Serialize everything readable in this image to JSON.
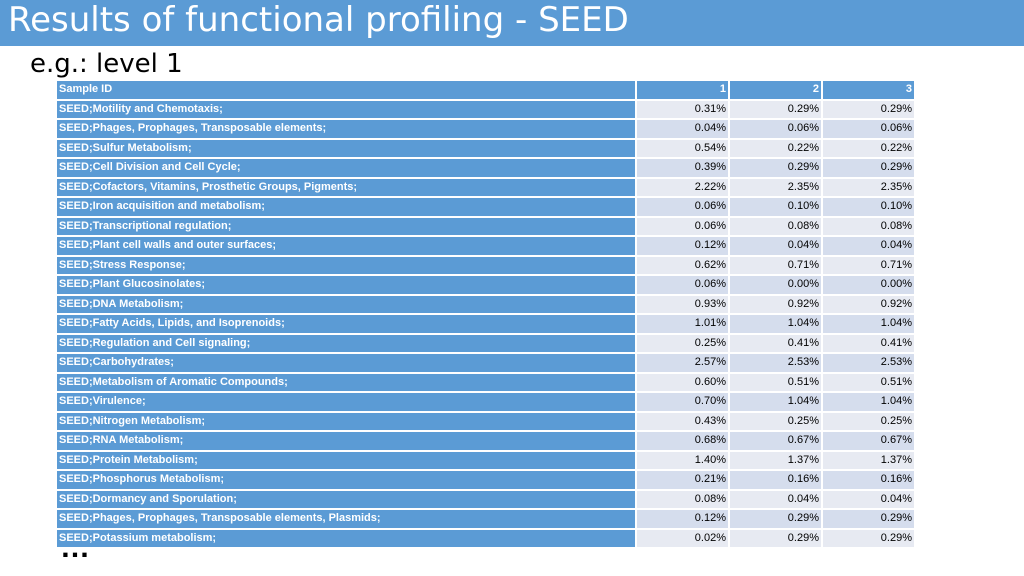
{
  "slide": {
    "title": "Results of functional profiling - SEED",
    "subtitle": "e.g.: level 1",
    "ellipsis": "…"
  },
  "table": {
    "header": {
      "label": "Sample ID",
      "cols": [
        "1",
        "2",
        "3"
      ]
    },
    "rows": [
      {
        "label": "SEED;Motility and Chemotaxis;",
        "values": [
          "0.31%",
          "0.29%",
          "0.29%"
        ]
      },
      {
        "label": "SEED;Phages, Prophages, Transposable elements;",
        "values": [
          "0.04%",
          "0.06%",
          "0.06%"
        ]
      },
      {
        "label": "SEED;Sulfur Metabolism;",
        "values": [
          "0.54%",
          "0.22%",
          "0.22%"
        ]
      },
      {
        "label": "SEED;Cell Division and Cell Cycle;",
        "values": [
          "0.39%",
          "0.29%",
          "0.29%"
        ]
      },
      {
        "label": "SEED;Cofactors, Vitamins, Prosthetic Groups, Pigments;",
        "values": [
          "2.22%",
          "2.35%",
          "2.35%"
        ]
      },
      {
        "label": "SEED;Iron acquisition and metabolism;",
        "values": [
          "0.06%",
          "0.10%",
          "0.10%"
        ]
      },
      {
        "label": "SEED;Transcriptional regulation;",
        "values": [
          "0.06%",
          "0.08%",
          "0.08%"
        ]
      },
      {
        "label": "SEED;Plant cell walls and outer surfaces;",
        "values": [
          "0.12%",
          "0.04%",
          "0.04%"
        ]
      },
      {
        "label": "SEED;Stress Response;",
        "values": [
          "0.62%",
          "0.71%",
          "0.71%"
        ]
      },
      {
        "label": "SEED;Plant Glucosinolates;",
        "values": [
          "0.06%",
          "0.00%",
          "0.00%"
        ]
      },
      {
        "label": "SEED;DNA Metabolism;",
        "values": [
          "0.93%",
          "0.92%",
          "0.92%"
        ]
      },
      {
        "label": "SEED;Fatty Acids, Lipids, and Isoprenoids;",
        "values": [
          "1.01%",
          "1.04%",
          "1.04%"
        ]
      },
      {
        "label": "SEED;Regulation and Cell signaling;",
        "values": [
          "0.25%",
          "0.41%",
          "0.41%"
        ]
      },
      {
        "label": "SEED;Carbohydrates;",
        "values": [
          "2.57%",
          "2.53%",
          "2.53%"
        ]
      },
      {
        "label": "SEED;Metabolism of Aromatic Compounds;",
        "values": [
          "0.60%",
          "0.51%",
          "0.51%"
        ]
      },
      {
        "label": "SEED;Virulence;",
        "values": [
          "0.70%",
          "1.04%",
          "1.04%"
        ]
      },
      {
        "label": "SEED;Nitrogen Metabolism;",
        "values": [
          "0.43%",
          "0.25%",
          "0.25%"
        ]
      },
      {
        "label": "SEED;RNA Metabolism;",
        "values": [
          "0.68%",
          "0.67%",
          "0.67%"
        ]
      },
      {
        "label": "SEED;Protein Metabolism;",
        "values": [
          "1.40%",
          "1.37%",
          "1.37%"
        ]
      },
      {
        "label": "SEED;Phosphorus Metabolism;",
        "values": [
          "0.21%",
          "0.16%",
          "0.16%"
        ]
      },
      {
        "label": "SEED;Dormancy and Sporulation;",
        "values": [
          "0.08%",
          "0.04%",
          "0.04%"
        ]
      },
      {
        "label": "SEED;Phages, Prophages, Transposable elements, Plasmids;",
        "values": [
          "0.12%",
          "0.29%",
          "0.29%"
        ]
      },
      {
        "label": "SEED;Potassium metabolism;",
        "values": [
          "0.02%",
          "0.29%",
          "0.29%"
        ]
      }
    ]
  },
  "colors": {
    "header_bg": "#5b9bd5",
    "row_light": "#e7eaf2",
    "row_dark": "#d5dded"
  }
}
